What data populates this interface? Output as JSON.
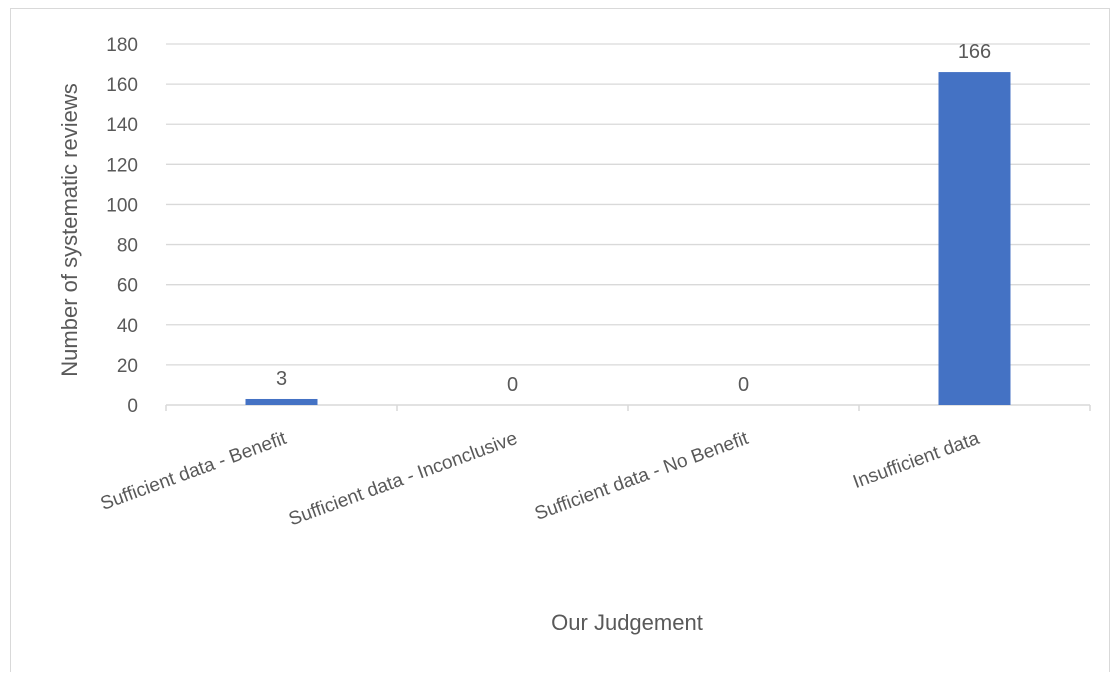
{
  "chart_data": {
    "type": "bar",
    "categories": [
      "Sufficient data - Benefit",
      "Sufficient data - Inconclusive",
      "Sufficient data - No Benefit",
      "Insufficient data"
    ],
    "values": [
      3,
      0,
      0,
      166
    ],
    "data_labels": [
      "3",
      "0",
      "0",
      "166"
    ],
    "xlabel": "Our Judgement",
    "ylabel": "Number of systematic reviews",
    "ylim": [
      0,
      180
    ],
    "yticks": [
      0,
      20,
      40,
      60,
      80,
      100,
      120,
      140,
      160,
      180
    ],
    "grid": true,
    "legend": "none",
    "colors": {
      "bar": "#4472C4",
      "grid": "#d9d9d9",
      "text": "#595959"
    }
  }
}
